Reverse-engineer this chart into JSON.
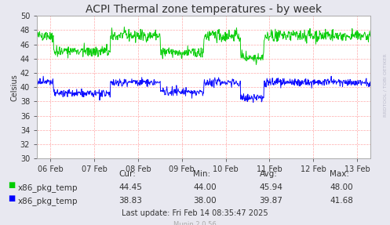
{
  "title": "ACPI Thermal zone temperatures - by week",
  "ylabel": "Celsius",
  "ylim": [
    30,
    50
  ],
  "yticks": [
    30,
    32,
    34,
    36,
    38,
    40,
    42,
    44,
    46,
    48,
    50
  ],
  "xtick_labels": [
    "06 Feb",
    "07 Feb",
    "08 Feb",
    "09 Feb",
    "10 Feb",
    "11 Feb",
    "12 Feb",
    "13 Feb"
  ],
  "bg_color": "#e8e8f0",
  "plot_bg_color": "#ffffff",
  "grid_color": "#ffaaaa",
  "line1_color": "#00cc00",
  "line2_color": "#0000ff",
  "title_color": "#333333",
  "text_color": "#333333",
  "watermark_color": "#bbbbcc",
  "legend1_label": "x86_pkg_temp",
  "legend2_label": "x86_pkg_temp",
  "cur1": "44.45",
  "cur2": "38.83",
  "min1": "44.00",
  "min2": "38.00",
  "avg1": "45.94",
  "avg2": "39.87",
  "max1": "48.00",
  "max2": "41.68",
  "last_update": "Last update: Fri Feb 14 08:35:47 2025",
  "munin_version": "Munin 2.0.56",
  "watermark": "RRDTOOL / TOBI OETIKER",
  "title_fontsize": 10,
  "axis_fontsize": 7,
  "legend_fontsize": 7.5,
  "stats_fontsize": 7.5,
  "annotation_fontsize": 7,
  "munin_fontsize": 6
}
